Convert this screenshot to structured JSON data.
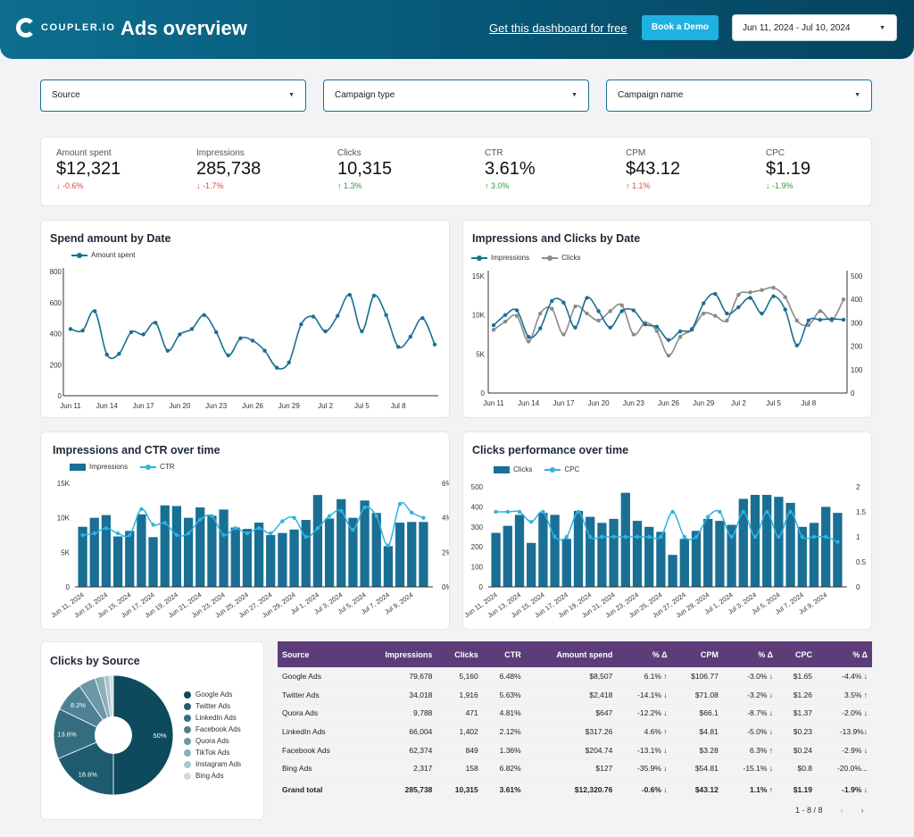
{
  "header": {
    "logo_text": "COUPLER.IO",
    "title": "Ads overview",
    "free_link": "Get this dashboard for free",
    "demo_button": "Book a Demo",
    "date_range": "Jun 11, 2024 - Jul 10, 2024"
  },
  "filters": {
    "source": "Source",
    "campaign_type": "Campaign type",
    "campaign_name": "Campaign name"
  },
  "kpis": [
    {
      "label": "Amount spent",
      "value": "$12,321",
      "delta": "-0.6%",
      "dir": "down"
    },
    {
      "label": "Impressions",
      "value": "285,738",
      "delta": "-1.7%",
      "dir": "down"
    },
    {
      "label": "Clicks",
      "value": "10,315",
      "delta": "1.3%",
      "dir": "up"
    },
    {
      "label": "CTR",
      "value": "3.61%",
      "delta": "3.0%",
      "dir": "up"
    },
    {
      "label": "CPM",
      "value": "$43.12",
      "delta": "1.1%",
      "dir": "up",
      "color": "#e04a3e"
    },
    {
      "label": "CPC",
      "value": "$1.19",
      "delta": "-1.9%",
      "dir": "down",
      "color": "#2f9a3a"
    }
  ],
  "colors": {
    "dark_blue": "#1a6f94",
    "light_blue": "#2fb3e3",
    "gray": "#8a8a8a",
    "header": "#0d6e8f",
    "table_header": "#5c3d7a"
  },
  "chart_data": [
    {
      "type": "line",
      "title": "Spend amount by Date",
      "series": [
        {
          "name": "Amount spent",
          "values": [
            430,
            420,
            545,
            265,
            270,
            410,
            395,
            470,
            290,
            395,
            430,
            520,
            410,
            260,
            370,
            355,
            290,
            180,
            215,
            460,
            510,
            415,
            515,
            650,
            415,
            645,
            520,
            315,
            380,
            500,
            330
          ]
        }
      ],
      "x_tick_labels": [
        "Jun 11",
        "Jun 14",
        "Jun 17",
        "Jun 20",
        "Jun 23",
        "Jun 26",
        "Jun 29",
        "Jul 2",
        "Jul 5",
        "Jul 8"
      ],
      "y_tick_labels": [
        "0",
        "200",
        "400",
        "600",
        "800"
      ],
      "ylim": [
        0,
        800
      ]
    },
    {
      "type": "line",
      "title": "Impressions and Clicks by Date",
      "series": [
        {
          "name": "Impressions",
          "axis": "left",
          "values": [
            8700,
            10000,
            10600,
            7200,
            8300,
            11800,
            11600,
            8400,
            12200,
            10500,
            8400,
            10500,
            10600,
            8800,
            8500,
            6800,
            7900,
            8200,
            11500,
            12700,
            10200,
            11000,
            12200,
            10200,
            12400,
            10700,
            6100,
            9300,
            9400,
            9500,
            9400
          ]
        },
        {
          "name": "Clicks",
          "axis": "right",
          "values": [
            270,
            305,
            330,
            220,
            340,
            360,
            250,
            370,
            340,
            310,
            350,
            375,
            250,
            300,
            265,
            160,
            240,
            270,
            340,
            330,
            310,
            420,
            430,
            440,
            450,
            410,
            310,
            290,
            350,
            310,
            400
          ]
        }
      ],
      "x_tick_labels": [
        "Jun 11",
        "Jun 14",
        "Jun 17",
        "Jun 20",
        "Jun 23",
        "Jun 26",
        "Jun 29",
        "Jul 2",
        "Jul 5",
        "Jul 8"
      ],
      "left_ticks": [
        "0",
        "5K",
        "10K",
        "15K"
      ],
      "right_ticks": [
        "0",
        "100",
        "200",
        "300",
        "400",
        "500"
      ],
      "ylim_left": [
        0,
        15000
      ],
      "ylim_right": [
        0,
        500
      ]
    },
    {
      "type": "bar",
      "title": "Impressions and CTR over time",
      "series": [
        {
          "name": "Impressions",
          "type": "bar",
          "values": [
            8700,
            10000,
            10400,
            7300,
            8100,
            10500,
            7200,
            11800,
            11700,
            10000,
            11500,
            10300,
            11200,
            8600,
            8400,
            9300,
            7500,
            7800,
            8300,
            9700,
            13300,
            9900,
            12700,
            10000,
            12500,
            10700,
            5900,
            9300,
            9400,
            9400
          ]
        },
        {
          "name": "CTR",
          "type": "line",
          "values": [
            3.0,
            3.1,
            3.4,
            3.1,
            3.0,
            4.5,
            3.6,
            3.7,
            3.0,
            3.1,
            3.9,
            4.1,
            3.0,
            3.4,
            3.1,
            3.4,
            3.1,
            3.8,
            4.0,
            2.9,
            3.4,
            4.1,
            4.4,
            3.3,
            4.6,
            4.1,
            2.4,
            4.8,
            4.3,
            4.0
          ]
        }
      ],
      "x_tick_labels": [
        "Jun 11, 2024",
        "Jun 13, 2024",
        "Jun 15, 2024",
        "Jun 17, 2024",
        "Jun 19, 2024",
        "Jun 21, 2024",
        "Jun 23, 2024",
        "Jun 25, 2024",
        "Jun 27, 2024",
        "Jun 29, 2024",
        "Jul 1, 2024",
        "Jul 3, 2024",
        "Jul 5, 2024",
        "Jul 7, 2024",
        "Jul 9, 2024"
      ],
      "left_ticks": [
        "0",
        "5K",
        "10K",
        "15K"
      ],
      "right_ticks": [
        "0%",
        "2%",
        "4%",
        "6%"
      ],
      "ylim_left": [
        0,
        15000
      ],
      "ylim_right": [
        0,
        6
      ]
    },
    {
      "type": "bar",
      "title": "Clicks performance over time",
      "series": [
        {
          "name": "Clicks",
          "type": "bar",
          "values": [
            270,
            305,
            360,
            220,
            370,
            360,
            240,
            380,
            350,
            320,
            340,
            470,
            330,
            300,
            275,
            160,
            240,
            280,
            340,
            330,
            310,
            440,
            460,
            460,
            450,
            420,
            300,
            320,
            400,
            370
          ]
        },
        {
          "name": "CPC",
          "type": "line",
          "values": [
            1.5,
            1.5,
            1.5,
            1.3,
            1.5,
            1.0,
            1.0,
            1.5,
            1.0,
            1.0,
            1.0,
            1.0,
            1.0,
            1.0,
            1.0,
            1.5,
            1.0,
            1.0,
            1.4,
            1.5,
            1.0,
            1.5,
            1.0,
            1.5,
            1.0,
            1.5,
            1.0,
            1.0,
            1.0,
            0.9
          ]
        }
      ],
      "x_tick_labels": [
        "Jun 11, 2024",
        "Jun 13, 2024",
        "Jun 15, 2024",
        "Jun 17, 2024",
        "Jun 19, 2024",
        "Jun 21, 2024",
        "Jun 23, 2024",
        "Jun 25, 2024",
        "Jun 27, 2024",
        "Jun 29, 2024",
        "Jul 1, 2024",
        "Jul 3, 2024",
        "Jul 5, 2024",
        "Jul 7, 2024",
        "Jul 9, 2024"
      ],
      "left_ticks": [
        "0",
        "100",
        "200",
        "300",
        "400",
        "500"
      ],
      "right_ticks": [
        "0",
        "0.5",
        "1",
        "1.5",
        "2"
      ],
      "ylim_left": [
        0,
        500
      ],
      "ylim_right": [
        0,
        2
      ]
    },
    {
      "type": "pie",
      "title": "Clicks by Source",
      "labels": [
        "Google Ads",
        "Twitter Ads",
        "LinkedIn Ads",
        "Facebook Ads",
        "Quora Ads",
        "TikTok Ads",
        "Instagram Ads",
        "Bing Ads"
      ],
      "values": [
        50,
        18.6,
        13.6,
        8.2,
        4.6,
        2.5,
        1.5,
        1.0
      ],
      "slice_labels": [
        "50%",
        "18.6%",
        "13.6%",
        "8.2%",
        "",
        "",
        "",
        ""
      ],
      "colors": [
        "#0d4a5e",
        "#1e5b6f",
        "#356d80",
        "#4f8193",
        "#6c97a7",
        "#8cafbc",
        "#adc6cf",
        "#cddbe0"
      ]
    }
  ],
  "table": {
    "headers": [
      "Source",
      "Impressions",
      "Clicks",
      "CTR",
      "Amount spend",
      "% Δ",
      "CPM",
      "% Δ",
      "CPC",
      "% Δ"
    ],
    "rows": [
      [
        "Google Ads",
        "79,678",
        "5,160",
        "6.48%",
        "$8,507",
        "6.1% ↑",
        "$106.77",
        "-3.0% ↓",
        "$1.65",
        "-4.4% ↓"
      ],
      [
        "Twitter Ads",
        "34,018",
        "1,916",
        "5.63%",
        "$2,418",
        "-14.1% ↓",
        "$71.08",
        "-3.2% ↓",
        "$1.26",
        "3.5% ↑"
      ],
      [
        "Quora Ads",
        "9,788",
        "471",
        "4.81%",
        "$647",
        "-12.2% ↓",
        "$66.1",
        "-8.7% ↓",
        "$1.37",
        "-2.0% ↓"
      ],
      [
        "LinkedIn Ads",
        "66,004",
        "1,402",
        "2.12%",
        "$317.26",
        "4.6% ↑",
        "$4.81",
        "-5.0% ↓",
        "$0.23",
        "-13.9%↓"
      ],
      [
        "Facebook Ads",
        "62,374",
        "849",
        "1.36%",
        "$204.74",
        "-13.1% ↓",
        "$3.28",
        "6.3% ↑",
        "$0.24",
        "-2.9% ↓"
      ],
      [
        "Bing Ads",
        "2,317",
        "158",
        "6.82%",
        "$127",
        "-35.9% ↓",
        "$54.81",
        "-15.1% ↓",
        "$0.8",
        "-20.0%..."
      ]
    ],
    "total": [
      "Grand total",
      "285,738",
      "10,315",
      "3.61%",
      "$12,320.76",
      "-0.6% ↓",
      "$43.12",
      "1.1% ↑",
      "$1.19",
      "-1.9% ↓"
    ],
    "pager": "1 - 8 / 8"
  }
}
